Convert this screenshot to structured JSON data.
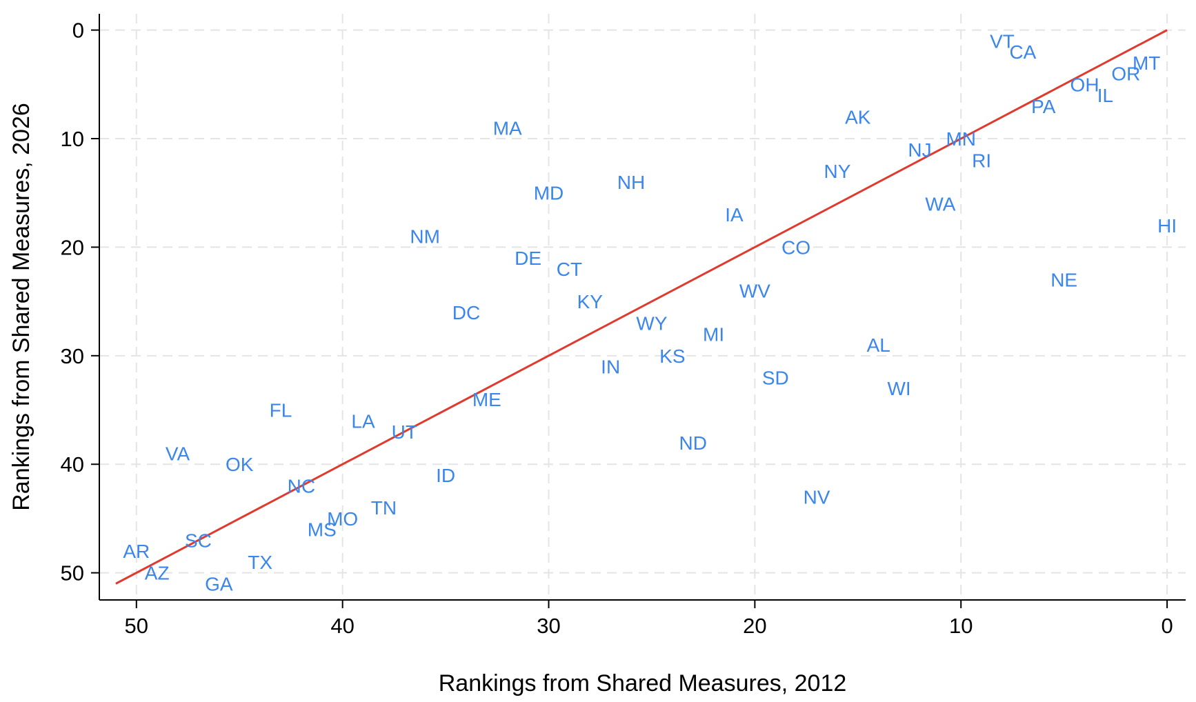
{
  "chart_data": {
    "type": "scatter",
    "xlabel": "Rankings from Shared Measures, 2012",
    "ylabel": "Rankings from Shared Measures, 2026",
    "xlim": [
      51.8,
      -0.9
    ],
    "ylim": [
      -1.5,
      52.5
    ],
    "x_reversed": true,
    "y_reversed": true,
    "xticks": [
      50,
      40,
      30,
      20,
      10,
      0
    ],
    "yticks": [
      0,
      10,
      20,
      30,
      40,
      50
    ],
    "grid": true,
    "label_color": "#3a86ec",
    "fit_line": {
      "color": "#e03a2e",
      "x": [
        51,
        0
      ],
      "y": [
        51,
        0
      ]
    },
    "points": [
      {
        "label": "VT",
        "x": 8,
        "y": 1
      },
      {
        "label": "CA",
        "x": 7,
        "y": 2
      },
      {
        "label": "MT",
        "x": 1,
        "y": 3
      },
      {
        "label": "OR",
        "x": 2,
        "y": 4
      },
      {
        "label": "OH",
        "x": 4,
        "y": 5
      },
      {
        "label": "IL",
        "x": 3,
        "y": 6
      },
      {
        "label": "PA",
        "x": 6,
        "y": 7
      },
      {
        "label": "AK",
        "x": 15,
        "y": 8
      },
      {
        "label": "MA",
        "x": 32,
        "y": 9
      },
      {
        "label": "MN",
        "x": 10,
        "y": 10
      },
      {
        "label": "NJ",
        "x": 12,
        "y": 11
      },
      {
        "label": "RI",
        "x": 9,
        "y": 12
      },
      {
        "label": "NY",
        "x": 16,
        "y": 13
      },
      {
        "label": "NH",
        "x": 26,
        "y": 14
      },
      {
        "label": "MD",
        "x": 30,
        "y": 15
      },
      {
        "label": "WA",
        "x": 11,
        "y": 16
      },
      {
        "label": "IA",
        "x": 21,
        "y": 17
      },
      {
        "label": "HI",
        "x": 0,
        "y": 18
      },
      {
        "label": "NM",
        "x": 36,
        "y": 19
      },
      {
        "label": "CO",
        "x": 18,
        "y": 20
      },
      {
        "label": "DE",
        "x": 31,
        "y": 21
      },
      {
        "label": "CT",
        "x": 29,
        "y": 22
      },
      {
        "label": "NE",
        "x": 5,
        "y": 23
      },
      {
        "label": "WV",
        "x": 20,
        "y": 24
      },
      {
        "label": "KY",
        "x": 28,
        "y": 25
      },
      {
        "label": "DC",
        "x": 34,
        "y": 26
      },
      {
        "label": "WY",
        "x": 25,
        "y": 27
      },
      {
        "label": "MI",
        "x": 22,
        "y": 28
      },
      {
        "label": "AL",
        "x": 14,
        "y": 29
      },
      {
        "label": "KS",
        "x": 24,
        "y": 30
      },
      {
        "label": "IN",
        "x": 27,
        "y": 31
      },
      {
        "label": "SD",
        "x": 19,
        "y": 32
      },
      {
        "label": "WI",
        "x": 13,
        "y": 33
      },
      {
        "label": "ME",
        "x": 33,
        "y": 34
      },
      {
        "label": "FL",
        "x": 43,
        "y": 35
      },
      {
        "label": "LA",
        "x": 39,
        "y": 36
      },
      {
        "label": "UT",
        "x": 37,
        "y": 37
      },
      {
        "label": "ND",
        "x": 23,
        "y": 38
      },
      {
        "label": "VA",
        "x": 48,
        "y": 39
      },
      {
        "label": "OK",
        "x": 45,
        "y": 40
      },
      {
        "label": "ID",
        "x": 35,
        "y": 41
      },
      {
        "label": "NC",
        "x": 42,
        "y": 42
      },
      {
        "label": "NV",
        "x": 17,
        "y": 43
      },
      {
        "label": "TN",
        "x": 38,
        "y": 44
      },
      {
        "label": "MO",
        "x": 40,
        "y": 45
      },
      {
        "label": "MS",
        "x": 41,
        "y": 46
      },
      {
        "label": "SC",
        "x": 47,
        "y": 47
      },
      {
        "label": "AR",
        "x": 50,
        "y": 48
      },
      {
        "label": "TX",
        "x": 44,
        "y": 49
      },
      {
        "label": "AZ",
        "x": 49,
        "y": 50
      },
      {
        "label": "GA",
        "x": 46,
        "y": 51
      }
    ]
  }
}
